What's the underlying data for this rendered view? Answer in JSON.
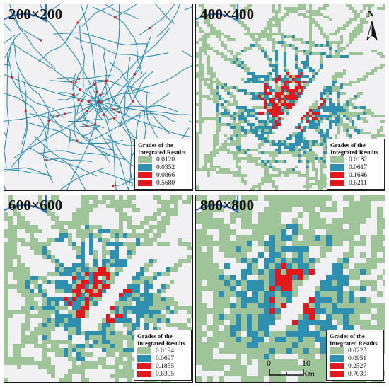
{
  "panels": [
    {
      "label": "200×200",
      "legend": {
        "title_line1": "Grades of the",
        "title_line2": "Integrated Results",
        "values": [
          "0.0120",
          "0.0352",
          "0.0866",
          "0.5680"
        ]
      }
    },
    {
      "label": "400×400",
      "legend": {
        "title_line1": "Grades of the",
        "title_line2": "Integrated Results",
        "values": [
          "0.0182",
          "0.0617",
          "0.1646",
          "0.6211"
        ]
      }
    },
    {
      "label": "600×600",
      "legend": {
        "title_line1": "Grades of the",
        "title_line2": "Integrated Results",
        "values": [
          "0.0194",
          "0.0697",
          "0.1835",
          "0.6305"
        ]
      }
    },
    {
      "label": "800×800",
      "legend": {
        "title_line1": "Grades of the",
        "title_line2": "Integrated Results",
        "values": [
          "0.0228",
          "0.0951",
          "0.2527",
          "0.7039"
        ]
      }
    }
  ],
  "north_arrow": {
    "letter": "N",
    "icon": "north-arrow-icon"
  },
  "scale_bar": {
    "start_label": "0",
    "end_label": "10 Km"
  },
  "colors": {
    "background": "#f1f1f3",
    "river": "#2f6fb6",
    "grade1": "#9fc49a",
    "grade2": "#2e8fae",
    "grade3": "#e1191f",
    "grade4": "#e1191f"
  }
}
